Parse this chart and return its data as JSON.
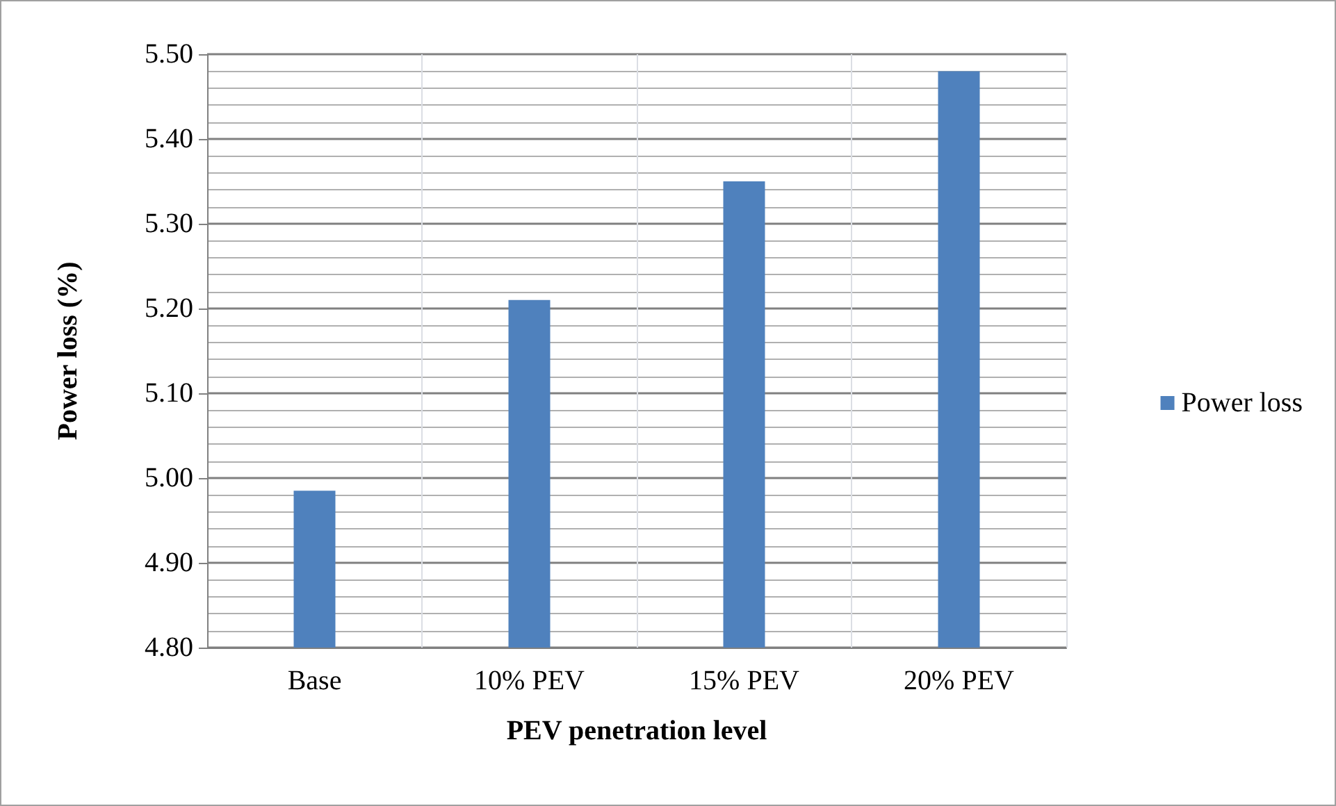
{
  "chart_data": {
    "type": "bar",
    "xlabel": "PEV penetration level",
    "ylabel": "Power loss (%)",
    "categories": [
      "Base",
      "10% PEV",
      "15% PEV",
      "20% PEV"
    ],
    "series": [
      {
        "name": "Power loss",
        "color": "#4f81bd",
        "values": [
          4.985,
          5.21,
          5.35,
          5.48
        ]
      }
    ],
    "ylim": [
      4.8,
      5.5
    ],
    "yticks": [
      {
        "value": 4.8,
        "label": "4.80"
      },
      {
        "value": 4.9,
        "label": "4.90"
      },
      {
        "value": 5.0,
        "label": "5.00"
      },
      {
        "value": 5.1,
        "label": "5.10"
      },
      {
        "value": 5.2,
        "label": "5.20"
      },
      {
        "value": 5.3,
        "label": "5.30"
      },
      {
        "value": 5.4,
        "label": "5.40"
      },
      {
        "value": 5.5,
        "label": "5.50"
      }
    ],
    "grid": true,
    "legend": "right"
  }
}
